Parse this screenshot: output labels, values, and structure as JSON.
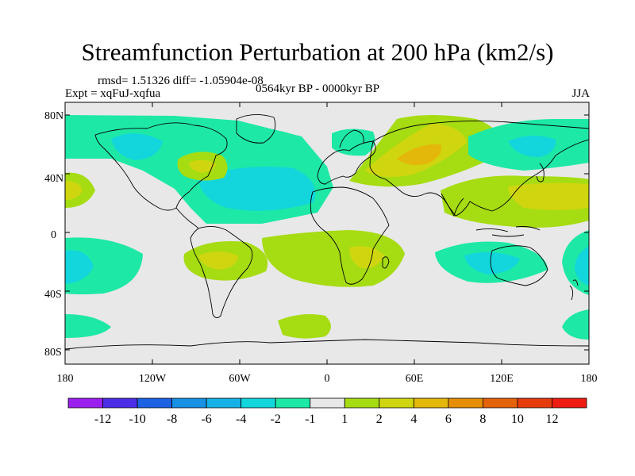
{
  "header": {
    "title": "Streamfunction Perturbation at 200 hPa (km2/s)",
    "stats": "rmsd= 1.51326 diff= -1.05904e-08",
    "experiment": "Expt = xqFuJ-xqfua",
    "period": "0564kyr BP - 0000kyr BP",
    "season": "JJA"
  },
  "map": {
    "lat_labels": [
      "80N",
      "40N",
      "0",
      "40S",
      "80S"
    ],
    "lon_labels": [
      "180",
      "120W",
      "60W",
      "0",
      "60E",
      "120E",
      "180"
    ]
  },
  "colorbar": {
    "labels": [
      "-12",
      "-10",
      "-8",
      "-6",
      "-4",
      "-2",
      "-1",
      "1",
      "2",
      "4",
      "6",
      "8",
      "10",
      "12"
    ],
    "colors": [
      "#9b20ef",
      "#4b2ee6",
      "#1c62e2",
      "#1890e4",
      "#16b2e6",
      "#12d6dc",
      "#1ee8a6",
      "#e8e8e8",
      "#a6dc12",
      "#cfd60f",
      "#e4b80a",
      "#e68e08",
      "#e4620a",
      "#e63c0d",
      "#ee1c12"
    ]
  },
  "colors": {
    "background": "#e8e8e8",
    "positive": "#a6dc12",
    "positive_mid": "#cfd60f",
    "positive_high": "#e4b80a",
    "negative": "#1ee8a6",
    "negative_mid": "#12d6dc"
  }
}
